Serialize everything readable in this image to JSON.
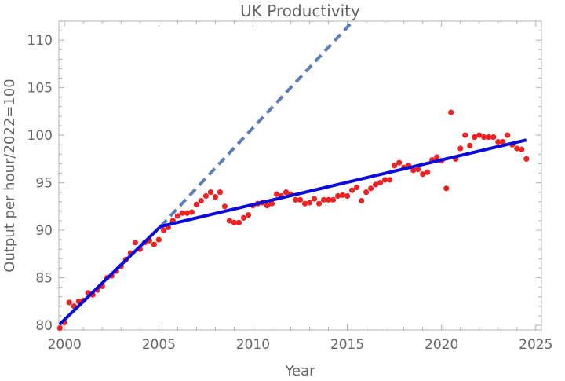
{
  "chart_data": {
    "type": "scatter",
    "title": "UK Productivity",
    "xlabel": "Year",
    "ylabel": "Output per hour/2022=100",
    "xlim": [
      1999.7,
      2025.3
    ],
    "ylim": [
      79.5,
      112
    ],
    "x_ticks": [
      2000,
      2005,
      2010,
      2015,
      2020,
      2025
    ],
    "y_ticks": [
      80,
      85,
      90,
      95,
      100,
      105,
      110
    ],
    "grid": false,
    "colors": {
      "points": "#ee2222",
      "trend_line": "#0a0adc",
      "extrapolation": "#5b7fb5",
      "frame": "#b0b0b0",
      "text": "#666666"
    },
    "series": [
      {
        "kind": "points",
        "x": [
          1999.75,
          2000.0,
          2000.25,
          2000.5,
          2000.75,
          2001.0,
          2001.25,
          2001.5,
          2001.75,
          2002.0,
          2002.25,
          2002.5,
          2002.75,
          2003.0,
          2003.25,
          2003.5,
          2003.75,
          2004.0,
          2004.25,
          2004.5,
          2004.75,
          2005.0,
          2005.25,
          2005.5,
          2005.75,
          2006.0,
          2006.25,
          2006.5,
          2006.75,
          2007.0,
          2007.25,
          2007.5,
          2007.75,
          2008.0,
          2008.25,
          2008.5,
          2008.75,
          2009.0,
          2009.25,
          2009.5,
          2009.75,
          2010.0,
          2010.25,
          2010.5,
          2010.75,
          2011.0,
          2011.25,
          2011.5,
          2011.75,
          2012.0,
          2012.25,
          2012.5,
          2012.75,
          2013.0,
          2013.25,
          2013.5,
          2013.75,
          2014.0,
          2014.25,
          2014.5,
          2014.75,
          2015.0,
          2015.25,
          2015.5,
          2015.75,
          2016.0,
          2016.25,
          2016.5,
          2016.75,
          2017.0,
          2017.25,
          2017.5,
          2017.75,
          2018.0,
          2018.25,
          2018.5,
          2018.75,
          2019.0,
          2019.25,
          2019.5,
          2019.75,
          2020.0,
          2020.25,
          2020.5,
          2020.75,
          2021.0,
          2021.25,
          2021.5,
          2021.75,
          2022.0,
          2022.25,
          2022.5,
          2022.75,
          2023.0,
          2023.25,
          2023.5,
          2023.75,
          2024.0,
          2024.25,
          2024.5
        ],
        "y": [
          79.7,
          80.3,
          82.4,
          82.0,
          82.5,
          82.6,
          83.4,
          83.2,
          83.7,
          84.1,
          85.0,
          85.2,
          85.7,
          86.2,
          86.9,
          87.6,
          88.7,
          88.0,
          88.7,
          88.9,
          88.5,
          89.0,
          90.0,
          90.3,
          91.0,
          91.5,
          91.8,
          91.8,
          91.9,
          92.7,
          93.1,
          93.6,
          94.0,
          93.5,
          94.0,
          92.5,
          91.0,
          90.8,
          90.8,
          91.3,
          91.6,
          92.6,
          92.8,
          92.9,
          92.6,
          92.8,
          93.8,
          93.6,
          94.0,
          93.8,
          93.2,
          93.2,
          92.8,
          92.9,
          93.3,
          92.8,
          93.2,
          93.2,
          93.2,
          93.6,
          93.7,
          93.6,
          94.2,
          94.5,
          93.1,
          94.0,
          94.4,
          94.8,
          95.0,
          95.3,
          95.3,
          96.8,
          97.1,
          96.6,
          96.8,
          96.3,
          96.4,
          95.9,
          96.1,
          97.4,
          97.7,
          97.3,
          94.4,
          102.4,
          97.5,
          98.6,
          100.0,
          98.9,
          99.8,
          100.0,
          99.8,
          99.8,
          99.8,
          99.3,
          99.3,
          100.0,
          99.0,
          98.6,
          98.5,
          97.5
        ]
      },
      {
        "kind": "line",
        "x": [
          1999.75,
          2005.1,
          2024.5
        ],
        "y": [
          80.1,
          90.4,
          99.5
        ]
      },
      {
        "kind": "dashed-line",
        "x": [
          2005.1,
          2015.3
        ],
        "y": [
          90.4,
          112
        ]
      }
    ]
  }
}
